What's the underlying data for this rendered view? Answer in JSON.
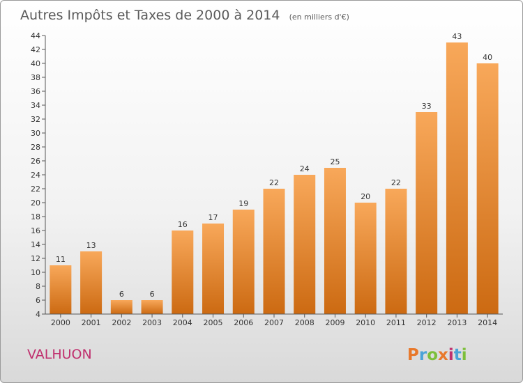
{
  "chart_data": {
    "type": "bar",
    "title": "Autres Impôts et Taxes de 2000 à 2014",
    "subtitle": "(en milliers d'€)",
    "categories": [
      "2000",
      "2001",
      "2002",
      "2003",
      "2004",
      "2005",
      "2006",
      "2007",
      "2008",
      "2009",
      "2010",
      "2011",
      "2012",
      "2013",
      "2014"
    ],
    "values": [
      11,
      13,
      6,
      6,
      16,
      17,
      19,
      22,
      24,
      25,
      20,
      22,
      33,
      43,
      40
    ],
    "ylim": [
      4,
      44
    ],
    "yticks": [
      4,
      6,
      8,
      10,
      12,
      14,
      16,
      18,
      20,
      22,
      24,
      26,
      28,
      30,
      32,
      34,
      36,
      38,
      40,
      42,
      44
    ],
    "grid": false,
    "bar_color": "#f0902e"
  },
  "footer": {
    "commune": "VALHUON",
    "logo": "Proxiti"
  },
  "colors": {
    "logo_letters": [
      "#e8782a",
      "#4aa3d8",
      "#7cbf3a",
      "#e8782a",
      "#c0306e",
      "#4aa3d8",
      "#7cbf3a"
    ]
  }
}
